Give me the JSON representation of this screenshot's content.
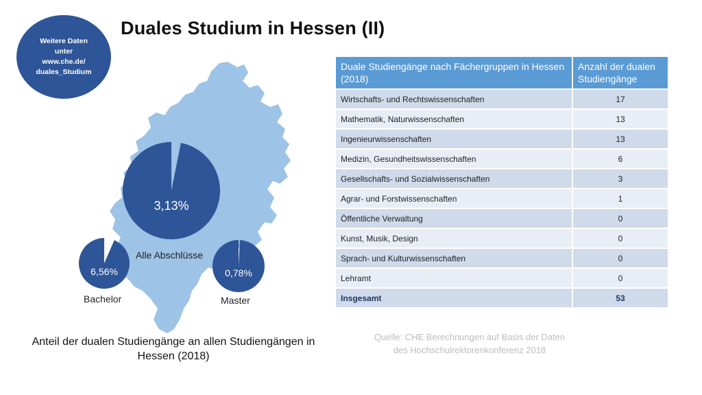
{
  "bubble": {
    "line1": "Weitere Daten",
    "line2": "unter",
    "line3": "www.che.de/",
    "line4": "duales_Studium"
  },
  "title": "Duales Studium in Hessen (II)",
  "colors": {
    "pie_dark": "#2e5597",
    "map_fill": "#9dc3e6",
    "table_header": "#5b9bd5",
    "row_dark": "#cfdaea",
    "row_light": "#e9eef6"
  },
  "pies": [
    {
      "name": "Alle Abschlüsse",
      "value_label": "3,13%",
      "percent": 3.13
    },
    {
      "name": "Bachelor",
      "value_label": "6,56%",
      "percent": 6.56
    },
    {
      "name": "Master",
      "value_label": "0,78%",
      "percent": 0.78
    }
  ],
  "caption": "Anteil der dualen Studiengänge an allen Studiengängen in Hessen (2018)",
  "table": {
    "headers": [
      "Duale Studiengänge nach Fächergruppen in Hessen (2018)",
      "Anzahl der dualen Studiengänge"
    ],
    "rows": [
      {
        "label": "Wirtschafts- und Rechtswissenschaften",
        "value": "17"
      },
      {
        "label": "Mathematik, Naturwissenschaften",
        "value": "13"
      },
      {
        "label": "Ingenieurwissenschaften",
        "value": "13"
      },
      {
        "label": "Medizin, Gesundheitswissenschaften",
        "value": "6"
      },
      {
        "label": "Gesellschafts- und Sozialwissenschaften",
        "value": "3"
      },
      {
        "label": "Agrar- und Forstwissenschaften",
        "value": "1"
      },
      {
        "label": "Öffentliche Verwaltung",
        "value": "0"
      },
      {
        "label": "Kunst, Musik, Design",
        "value": "0"
      },
      {
        "label": "Sprach- und Kulturwissenschaften",
        "value": "0"
      },
      {
        "label": "Lehramt",
        "value": "0"
      },
      {
        "label": "Insgesamt",
        "value": "53"
      }
    ]
  },
  "source": {
    "line1": "Quelle: CHE Berechnungen auf Basis der Daten",
    "line2": "des Hochschulrektorenkonferenz 2018"
  }
}
